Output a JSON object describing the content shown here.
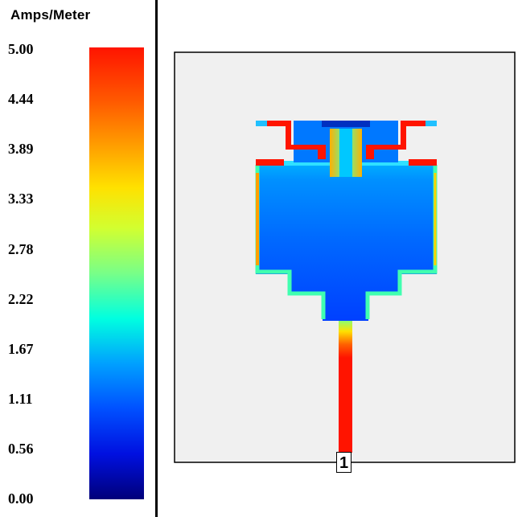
{
  "legend": {
    "title": "Amps/Meter",
    "ticks": [
      "5.00",
      "4.44",
      "3.89",
      "3.33",
      "2.78",
      "2.22",
      "1.67",
      "1.11",
      "0.56",
      "0.00"
    ],
    "colors": {
      "max": "#ff1400",
      "high": "#ffa000",
      "mid": "#78ff88",
      "low": "#00a0ff",
      "min": "#00007a"
    }
  },
  "viewport": {
    "background": "#f0f0f0",
    "port_label": "1"
  }
}
